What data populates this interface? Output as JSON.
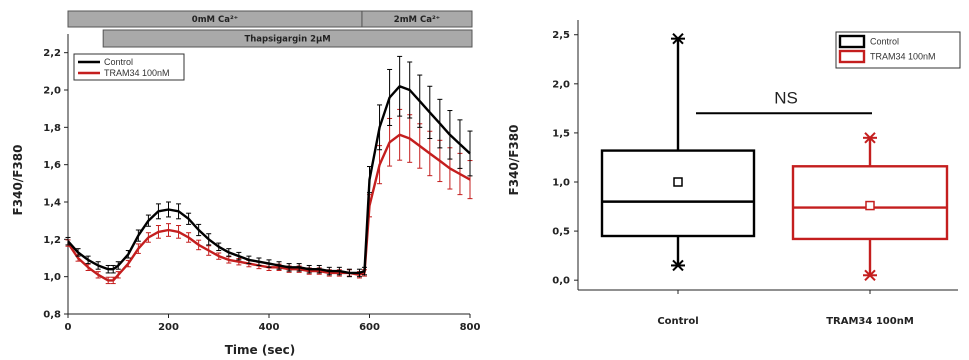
{
  "chart_data": [
    {
      "type": "line",
      "xlabel": "Time (sec)",
      "ylabel": "F340/F380",
      "xlim": [
        0,
        800
      ],
      "ylim": [
        0.8,
        2.3
      ],
      "x_ticks": [
        {
          "v": 0,
          "t": "0"
        },
        {
          "v": 200,
          "t": "200"
        },
        {
          "v": 400,
          "t": "400"
        },
        {
          "v": 600,
          "t": "600"
        },
        {
          "v": 800,
          "t": "800"
        }
      ],
      "y_ticks": [
        {
          "v": 0.8,
          "t": "0,8"
        },
        {
          "v": 1.0,
          "t": "1,0"
        },
        {
          "v": 1.2,
          "t": "1,2"
        },
        {
          "v": 1.4,
          "t": "1,4"
        },
        {
          "v": 1.6,
          "t": "1,6"
        },
        {
          "v": 1.8,
          "t": "1,8"
        },
        {
          "v": 2.0,
          "t": "2,0"
        },
        {
          "v": 2.2,
          "t": "2,2"
        }
      ],
      "condition_bars": [
        {
          "label": "0mM Ca²⁺",
          "x_start": 0,
          "x_end": 585,
          "row": 0
        },
        {
          "label": "2mM Ca²⁺",
          "x_start": 585,
          "x_end": 835,
          "row": 0
        },
        {
          "label": "Thapsigargin 2µM",
          "x_start": 70,
          "x_end": 835,
          "row": 1
        }
      ],
      "legend": {
        "position": "top-left"
      },
      "series": [
        {
          "name": "Control",
          "color": "#000000",
          "x": [
            0,
            20,
            40,
            60,
            80,
            90,
            100,
            120,
            140,
            160,
            180,
            200,
            220,
            240,
            260,
            280,
            300,
            320,
            340,
            360,
            380,
            400,
            420,
            440,
            460,
            480,
            500,
            520,
            540,
            560,
            580,
            590,
            600,
            620,
            640,
            660,
            680,
            700,
            720,
            740,
            760,
            780,
            800
          ],
          "y": [
            1.19,
            1.13,
            1.09,
            1.06,
            1.04,
            1.04,
            1.06,
            1.12,
            1.22,
            1.3,
            1.35,
            1.36,
            1.35,
            1.31,
            1.25,
            1.2,
            1.16,
            1.13,
            1.11,
            1.09,
            1.08,
            1.07,
            1.06,
            1.05,
            1.05,
            1.04,
            1.04,
            1.03,
            1.03,
            1.02,
            1.02,
            1.03,
            1.52,
            1.8,
            1.96,
            2.02,
            2.0,
            1.94,
            1.88,
            1.82,
            1.76,
            1.71,
            1.66
          ],
          "error": [
            0.02,
            0.02,
            0.02,
            0.02,
            0.02,
            0.02,
            0.02,
            0.02,
            0.03,
            0.03,
            0.04,
            0.04,
            0.04,
            0.03,
            0.03,
            0.03,
            0.02,
            0.02,
            0.02,
            0.02,
            0.02,
            0.02,
            0.02,
            0.02,
            0.02,
            0.02,
            0.02,
            0.02,
            0.02,
            0.02,
            0.02,
            0.02,
            0.07,
            0.12,
            0.15,
            0.16,
            0.15,
            0.14,
            0.14,
            0.13,
            0.13,
            0.13,
            0.12
          ]
        },
        {
          "name": "TRAM34 100nM",
          "color": "#c41e1e",
          "x": [
            0,
            20,
            40,
            60,
            80,
            90,
            100,
            120,
            140,
            160,
            180,
            200,
            220,
            240,
            260,
            280,
            300,
            320,
            340,
            360,
            380,
            400,
            420,
            440,
            460,
            480,
            500,
            520,
            540,
            560,
            580,
            590,
            600,
            620,
            640,
            660,
            680,
            700,
            720,
            740,
            760,
            780,
            800
          ],
          "y": [
            1.18,
            1.1,
            1.05,
            1.01,
            0.98,
            0.98,
            1.01,
            1.07,
            1.15,
            1.21,
            1.24,
            1.25,
            1.24,
            1.21,
            1.17,
            1.14,
            1.11,
            1.09,
            1.08,
            1.07,
            1.06,
            1.05,
            1.05,
            1.04,
            1.04,
            1.03,
            1.03,
            1.02,
            1.02,
            1.02,
            1.01,
            1.02,
            1.38,
            1.6,
            1.72,
            1.76,
            1.74,
            1.7,
            1.66,
            1.62,
            1.58,
            1.55,
            1.52
          ]
        }
      ]
    },
    {
      "type": "box",
      "ylabel": "F340/F380",
      "ylim": [
        -0.1,
        2.65
      ],
      "y_ticks": [
        {
          "v": 0.0,
          "t": "0,0"
        },
        {
          "v": 0.5,
          "t": "0,5"
        },
        {
          "v": 1.0,
          "t": "1,0"
        },
        {
          "v": 1.5,
          "t": "1,5"
        },
        {
          "v": 2.0,
          "t": "2,0"
        },
        {
          "v": 2.5,
          "t": "2,5"
        }
      ],
      "categories": [
        "Control",
        "TRAM34 100nM"
      ],
      "boxes": [
        {
          "name": "Control",
          "color": "#000000",
          "min": 0.15,
          "q1": 0.45,
          "median": 0.8,
          "q3": 1.32,
          "max": 2.46,
          "mean": 1.0
        },
        {
          "name": "TRAM34 100nM",
          "color": "#c41e1e",
          "min": 0.05,
          "q1": 0.42,
          "median": 0.74,
          "q3": 1.16,
          "max": 1.45,
          "mean": 0.76
        }
      ],
      "annotation": {
        "text": "NS",
        "y": 1.7
      },
      "legend": {
        "position": "top-right"
      }
    }
  ]
}
